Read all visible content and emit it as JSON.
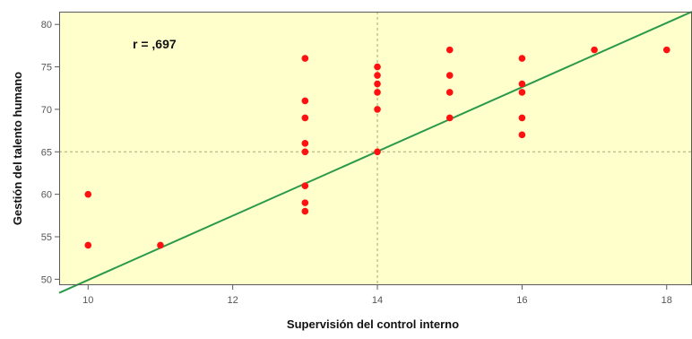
{
  "chart_data": {
    "type": "scatter",
    "xlabel": "Supervisión del control interno",
    "ylabel": "Gestión del talento humano",
    "annotation": "r = ,697",
    "xlim": [
      9.6,
      18.35
    ],
    "ylim": [
      49.3,
      81.5
    ],
    "xticks": [
      10,
      12,
      14,
      16,
      18
    ],
    "yticks": [
      50,
      55,
      60,
      65,
      70,
      75,
      80
    ],
    "grid": false,
    "reference_lines": {
      "x": 14,
      "y": 65
    },
    "fit_line": {
      "points": [
        [
          9.6,
          48.4
        ],
        [
          18.35,
          81.5
        ]
      ]
    },
    "points": [
      [
        10,
        60
      ],
      [
        10,
        54
      ],
      [
        11,
        54
      ],
      [
        13,
        76
      ],
      [
        13,
        71
      ],
      [
        13,
        69
      ],
      [
        13,
        66
      ],
      [
        13,
        65
      ],
      [
        13,
        61
      ],
      [
        13,
        59
      ],
      [
        13,
        58
      ],
      [
        14,
        75
      ],
      [
        14,
        74
      ],
      [
        14,
        73
      ],
      [
        14,
        72
      ],
      [
        14,
        70
      ],
      [
        14,
        65
      ],
      [
        15,
        77
      ],
      [
        15,
        74
      ],
      [
        15,
        72
      ],
      [
        15,
        69
      ],
      [
        16,
        76
      ],
      [
        16,
        73
      ],
      [
        16,
        72
      ],
      [
        16,
        69
      ],
      [
        16,
        67
      ],
      [
        17,
        77
      ],
      [
        18,
        77
      ]
    ],
    "colors": {
      "background": "#ffffcc",
      "points": "#ff1111",
      "fit_line": "#2a9a4a",
      "reference_lines": "#a8a878",
      "frame": "#5a5a5a"
    }
  }
}
